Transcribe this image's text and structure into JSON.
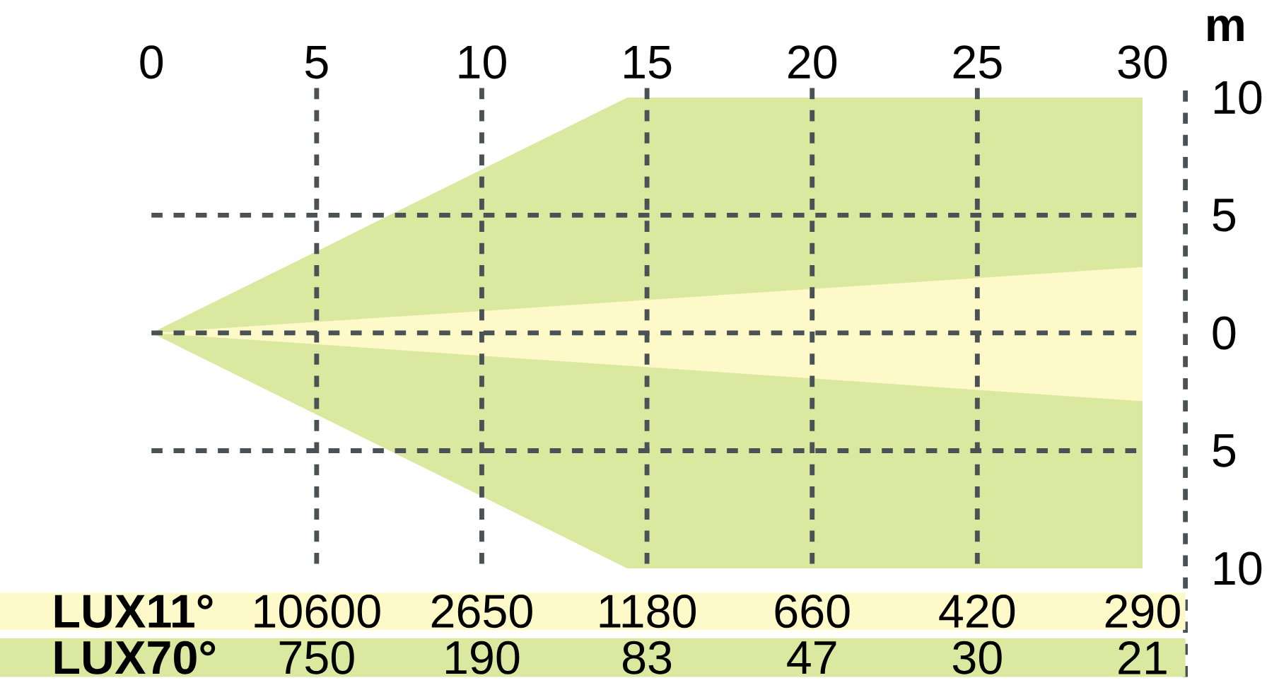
{
  "chart_data": {
    "type": "area",
    "ylabel": "m",
    "xlim": [
      0,
      30
    ],
    "ylim": [
      -10,
      10
    ],
    "xticks": [
      0,
      5,
      10,
      15,
      20,
      25,
      30
    ],
    "yticks": [
      {
        "value": -10,
        "label": "10"
      },
      {
        "value": -5,
        "label": "5"
      },
      0,
      {
        "value": 5,
        "label": "5"
      },
      {
        "value": 10,
        "label": "10"
      }
    ],
    "grid": true,
    "series": [
      {
        "name": "LUX11°",
        "color": "#fdf9c8",
        "x": [
          0,
          5,
          10,
          15,
          20,
          25,
          30
        ],
        "values": [
          0,
          0.47,
          0.93,
          1.4,
          1.87,
          2.33,
          2.8
        ]
      },
      {
        "color": "#fdf9c8",
        "x": [
          0,
          5,
          10,
          15,
          20,
          25,
          30
        ],
        "values": [
          0,
          -0.48,
          -0.97,
          -1.45,
          -1.93,
          -2.42,
          -2.9
        ]
      },
      {
        "name": "LUX70°",
        "color": "#dbe8a0",
        "x": [
          0,
          5,
          10,
          14.4,
          15,
          20,
          25,
          30
        ],
        "values": [
          0,
          3.47,
          6.94,
          10,
          10,
          10,
          10,
          10
        ]
      },
      {
        "color": "#dbe8a0",
        "x": [
          0,
          5,
          10,
          14.4,
          15,
          20,
          25,
          30
        ],
        "values": [
          0,
          -3.47,
          -6.94,
          -10,
          -10,
          -10,
          -10,
          -10
        ]
      }
    ],
    "annotations": [
      "10600",
      "2650",
      "1180",
      "660",
      "420",
      "290",
      "750",
      "190",
      "83",
      "47",
      "30",
      "21"
    ]
  }
}
